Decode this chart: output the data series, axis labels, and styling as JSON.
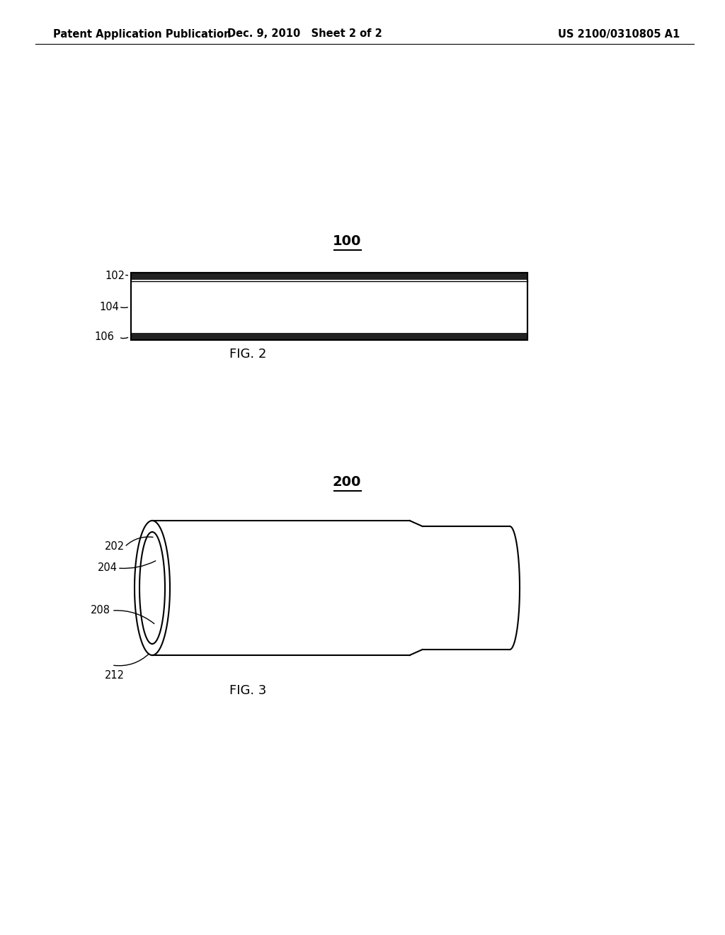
{
  "bg_color": "#ffffff",
  "header_left": "Patent Application Publication",
  "header_mid": "Dec. 9, 2010   Sheet 2 of 2",
  "header_right": "US 2100/0310805 A1",
  "line_color": "#000000",
  "text_color": "#000000",
  "label_fontsize": 10.5,
  "caption_fontsize": 13,
  "ref_fontsize": 14
}
